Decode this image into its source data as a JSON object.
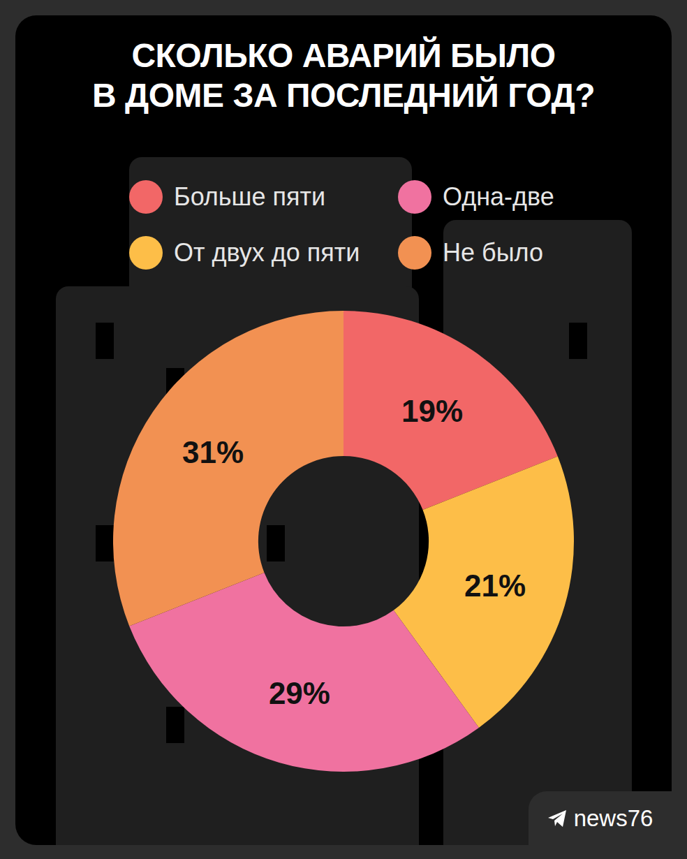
{
  "chart_data": {
    "type": "pie",
    "title": "СКОЛЬКО АВАРИЙ БЫЛО В ДОМЕ ЗА ПОСЛЕДНИЙ ГОД?",
    "categories": [
      "Больше пяти",
      "От двух до пяти",
      "Одна-две",
      "Не было"
    ],
    "values": [
      19,
      21,
      29,
      31
    ],
    "value_labels": [
      "19%",
      "21%",
      "29%",
      "31%"
    ],
    "colors": [
      "#f26767",
      "#fdbe48",
      "#f072a0",
      "#f29152"
    ],
    "data_labels": true,
    "legend": "top"
  },
  "watermark": "news76"
}
